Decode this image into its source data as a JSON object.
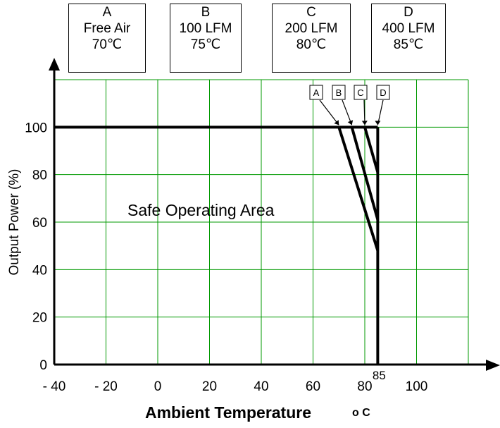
{
  "chart_data": {
    "type": "line",
    "title": "",
    "xlabel": "Ambient Temperature",
    "xlabel_unit": "o C",
    "ylabel": "Output Power (%)",
    "xlim": [
      -40,
      120
    ],
    "ylim": [
      0,
      120
    ],
    "x_ticks": [
      "- 40",
      "- 20",
      "0",
      "20",
      "40",
      "60",
      "80",
      "100"
    ],
    "x_tick_values": [
      -40,
      -20,
      0,
      20,
      40,
      60,
      80,
      100
    ],
    "extra_x_tick": {
      "label": "85",
      "value": 85
    },
    "y_ticks": [
      "0",
      "20",
      "40",
      "60",
      "80",
      "100"
    ],
    "y_tick_values": [
      0,
      20,
      40,
      60,
      80,
      100
    ],
    "grid": true,
    "grid_color": "#009900",
    "annotation": "Safe Operating Area",
    "base_line": {
      "x": [
        -40,
        70
      ],
      "y": [
        100,
        100
      ]
    },
    "limit_line": {
      "x": [
        85,
        85
      ],
      "y": [
        0,
        100
      ]
    },
    "series": [
      {
        "name": "A",
        "x": [
          70,
          85
        ],
        "y": [
          100,
          48
        ]
      },
      {
        "name": "B",
        "x": [
          75,
          85
        ],
        "y": [
          100,
          61
        ]
      },
      {
        "name": "C",
        "x": [
          80,
          85
        ],
        "y": [
          100,
          81
        ]
      },
      {
        "name": "D",
        "x": [
          85,
          85
        ],
        "y": [
          100,
          100
        ]
      }
    ],
    "conditions": [
      {
        "id": "A",
        "line1": "Free Air",
        "line2": "70℃"
      },
      {
        "id": "B",
        "line1": "100 LFM",
        "line2": "75℃"
      },
      {
        "id": "C",
        "line1": "200 LFM",
        "line2": "80℃"
      },
      {
        "id": "D",
        "line1": "400 LFM",
        "line2": "85℃"
      }
    ]
  }
}
